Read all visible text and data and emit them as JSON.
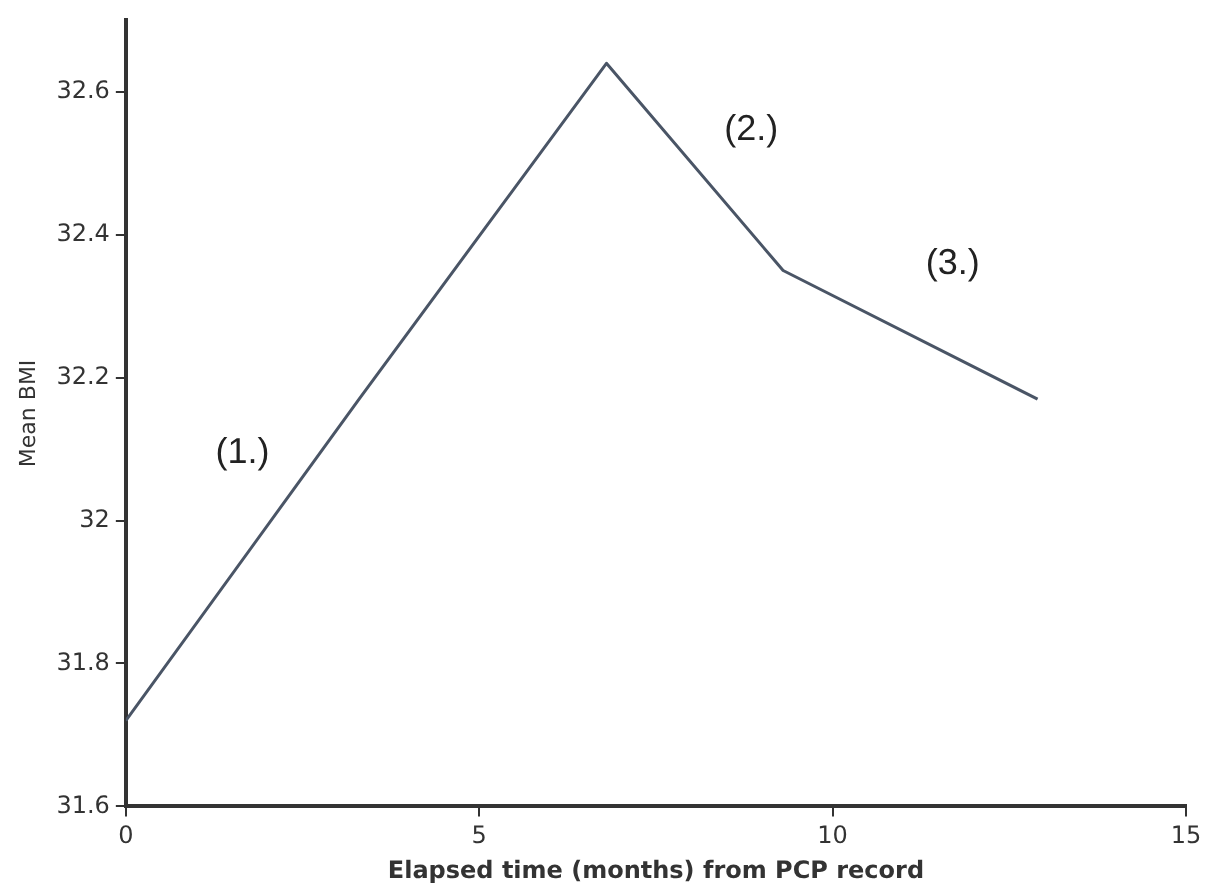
{
  "chart_data": {
    "type": "line",
    "xlabel": "Elapsed time (months) from PCP record",
    "ylabel": "Mean BMI",
    "x": [
      0,
      3.3,
      6.8,
      9.3,
      12.9
    ],
    "series": [
      {
        "color": "#4a5566",
        "values": [
          31.72,
          32.17,
          32.64,
          32.35,
          32.17
        ]
      }
    ],
    "xlim": [
      0,
      15
    ],
    "xticks": [
      0,
      5,
      10,
      15
    ],
    "ylim": [
      31.6,
      32.7
    ],
    "yticks": [
      31.6,
      31.8,
      32,
      32.2,
      32.4,
      32.6
    ],
    "grid": false,
    "legend": false,
    "marker": "none",
    "line_style": "solid",
    "annotations": [
      "(1.)",
      "(2.)",
      "(3.)"
    ]
  }
}
